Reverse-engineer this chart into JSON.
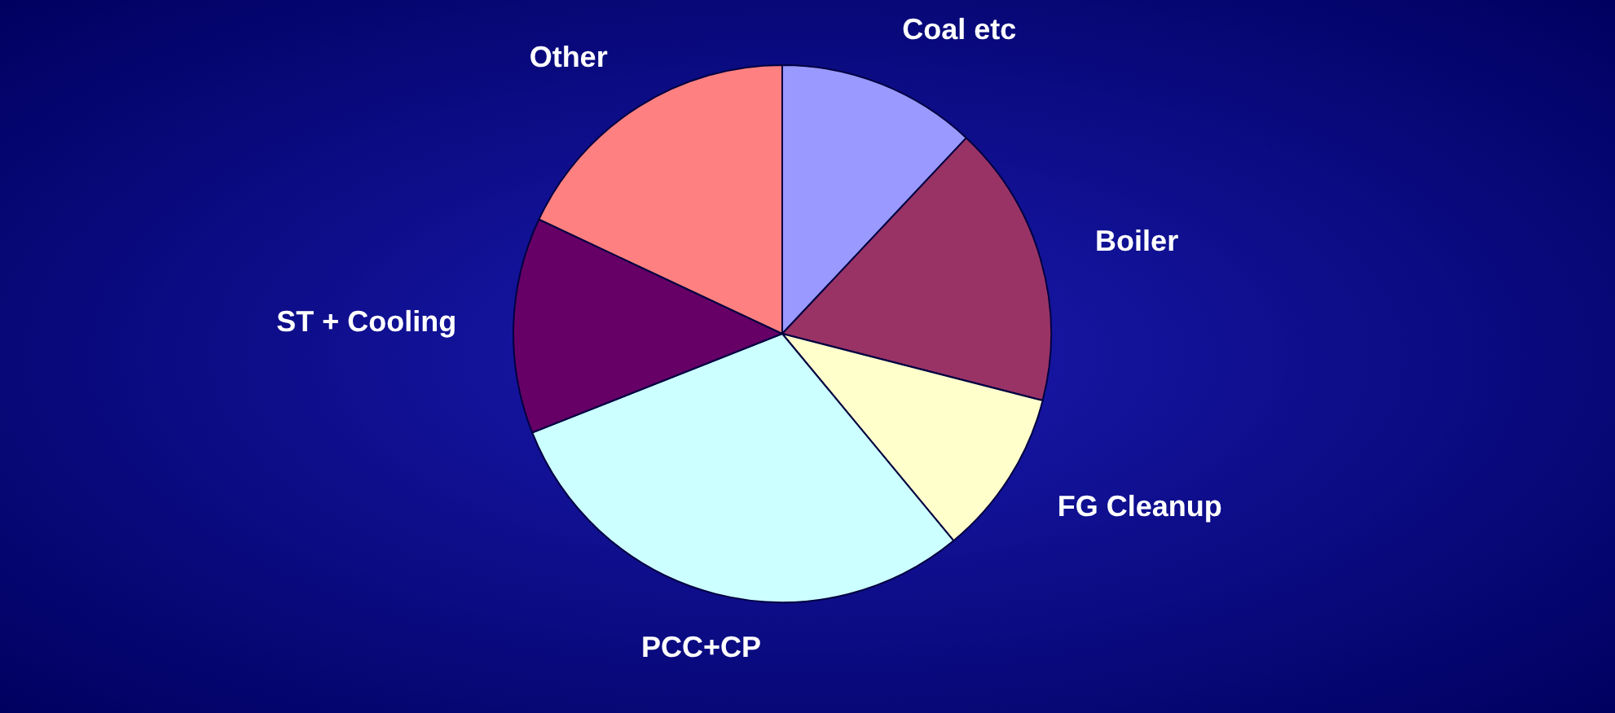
{
  "chart_data": {
    "type": "pie",
    "categories": [
      "Coal etc",
      "Boiler",
      "FG Cleanup",
      "PCC+CP",
      "ST + Cooling",
      "Other"
    ],
    "values": [
      12,
      17,
      10,
      30,
      13,
      18
    ],
    "colors": [
      "#9999ff",
      "#993366",
      "#ffffcc",
      "#ccffff",
      "#660066",
      "#ff8080"
    ]
  }
}
